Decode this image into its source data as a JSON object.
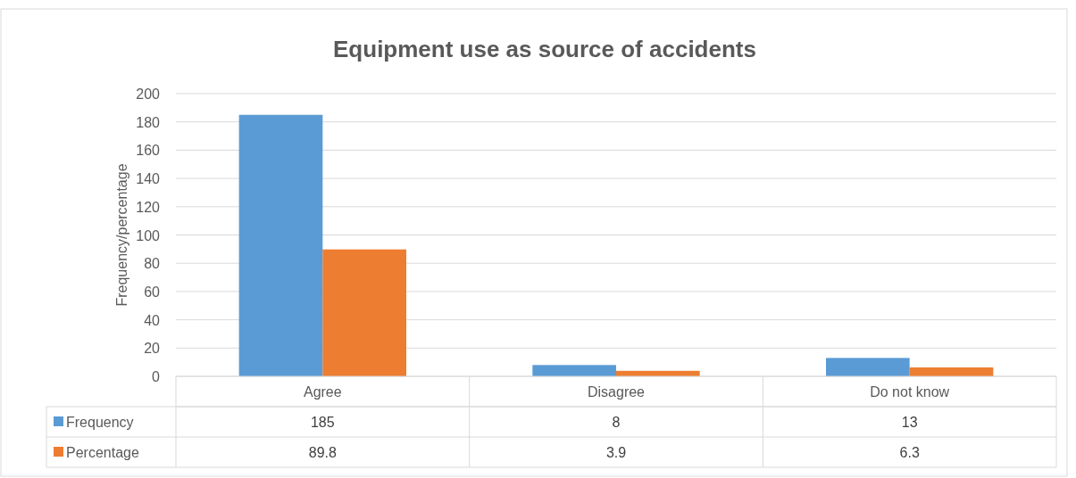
{
  "chart_data": {
    "type": "bar",
    "title": "Equipment use as source of accidents",
    "ylabel": "Frequency/percentage",
    "categories": [
      "Agree",
      "Disagree",
      "Do not know"
    ],
    "series": [
      {
        "name": "Frequency",
        "color": "#5b9bd5",
        "values": [
          185,
          8,
          13
        ]
      },
      {
        "name": "Percentage",
        "color": "#ed7d31",
        "values": [
          89.8,
          3.9,
          6.3
        ]
      }
    ],
    "ylim": [
      0,
      200
    ],
    "yticks": [
      0,
      20,
      40,
      60,
      80,
      100,
      120,
      140,
      160,
      180,
      200
    ],
    "grid": "y",
    "legend": "bottom",
    "data_labels": true
  }
}
